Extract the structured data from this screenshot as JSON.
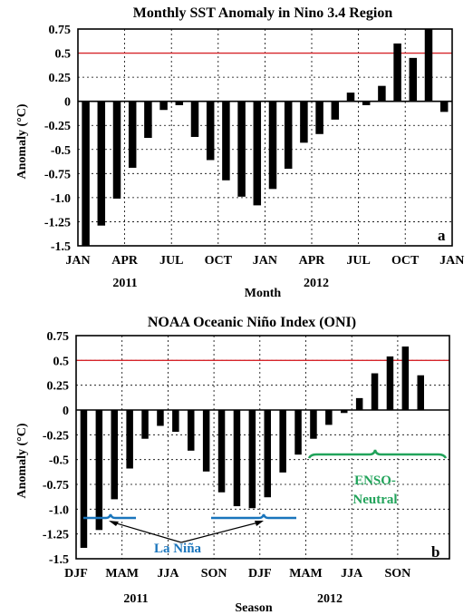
{
  "chart_data": [
    {
      "type": "bar",
      "title": "Monthly SST Anomaly in Nino 3.4 Region",
      "xlabel": "Month",
      "ylabel": "Anomaly (°C)",
      "ylim": [
        -1.5,
        0.75
      ],
      "yticks": [
        "0.75",
        "0.5",
        "0.25",
        "0",
        "-0.25",
        "-0.5",
        "-0.75",
        "-1.0",
        "-1.25",
        "-1.5"
      ],
      "xticks": [
        "JAN",
        "APR",
        "JUL",
        "OCT",
        "JAN",
        "APR",
        "JUL",
        "OCT",
        "JAN"
      ],
      "year_labels": [
        "2011",
        "2012"
      ],
      "threshold": 0.5,
      "threshold_color": "#d6262b",
      "panel_label": "a",
      "grid": "dotted",
      "categories": [
        "Jan 2011",
        "Feb 2011",
        "Mar 2011",
        "Apr 2011",
        "May 2011",
        "Jun 2011",
        "Jul 2011",
        "Aug 2011",
        "Sep 2011",
        "Oct 2011",
        "Nov 2011",
        "Dec 2011",
        "Jan 2012",
        "Feb 2012",
        "Mar 2012",
        "Apr 2012",
        "May 2012",
        "Jun 2012",
        "Jul 2012",
        "Aug 2012",
        "Sep 2012",
        "Oct 2012",
        "Nov 2012",
        "Dec 2012"
      ],
      "values": [
        -1.5,
        -1.29,
        -1.01,
        -0.69,
        -0.38,
        -0.09,
        -0.04,
        -0.37,
        -0.61,
        -0.82,
        -0.99,
        -1.08,
        -0.91,
        -0.7,
        -0.43,
        -0.34,
        -0.19,
        0.09,
        -0.04,
        0.16,
        0.6,
        0.45,
        0.75,
        -0.11
      ]
    },
    {
      "type": "bar",
      "title": "NOAA Oceanic Niño Index (ONI)",
      "xlabel": "Season",
      "ylabel": "Anomaly (°C)",
      "ylim": [
        -1.5,
        0.75
      ],
      "yticks": [
        "0.75",
        "0.5",
        "0.25",
        "0",
        "-0.25",
        "-0.5",
        "-0.75",
        "-1.0",
        "-1.25",
        "-1.5"
      ],
      "xticks": [
        "DJF",
        "MAM",
        "JJA",
        "SON",
        "DJF",
        "MAM",
        "JJA",
        "SON"
      ],
      "year_labels": [
        "2011",
        "2012"
      ],
      "threshold": 0.5,
      "threshold_color": "#d6262b",
      "panel_label": "b",
      "grid": "dotted",
      "annotations": {
        "la_nina": "La Niña",
        "enso_line1": "ENSO-",
        "enso_line2": "Neutral",
        "la_nina_color": "#1a75bc",
        "enso_color": "#21a35a"
      },
      "categories": [
        "DJF 2011",
        "JFM 2011",
        "FMA 2011",
        "MAM 2011",
        "AMJ 2011",
        "MJJ 2011",
        "JJA 2011",
        "JAS 2011",
        "ASO 2011",
        "SON 2011",
        "OND 2011",
        "NDJ 2011",
        "DJF 2012",
        "JFM 2012",
        "FMA 2012",
        "MAM 2012",
        "AMJ 2012",
        "MJJ 2012",
        "JJA 2012",
        "JAS 2012",
        "ASO 2012",
        "SON 2012",
        "OND 2012"
      ],
      "values": [
        -1.39,
        -1.21,
        -0.9,
        -0.59,
        -0.29,
        -0.16,
        -0.22,
        -0.41,
        -0.62,
        -0.83,
        -0.97,
        -0.99,
        -0.88,
        -0.63,
        -0.45,
        -0.29,
        -0.15,
        -0.03,
        0.12,
        0.37,
        0.54,
        0.64,
        0.35
      ]
    }
  ]
}
